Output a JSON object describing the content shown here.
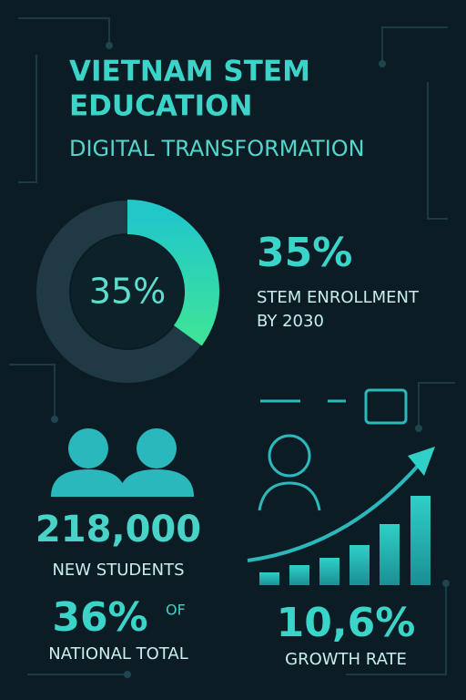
{
  "header": {
    "title_line1": "VIETNAM STEM",
    "title_line2": "EDUCATION",
    "subtitle": "DIGITAL TRANSFORMATION"
  },
  "enrollment": {
    "donut_value": 35,
    "donut_label": "35%",
    "headline": "35%",
    "caption_line1": "STEM ENROLLMENT",
    "caption_line2": "BY 2030"
  },
  "students": {
    "count": "218,000",
    "count_caption": "NEW STUDENTS",
    "share": "36%",
    "share_suffix": "OF",
    "share_caption": "NATIONAL TOTAL"
  },
  "growth": {
    "rate": "10,6%",
    "caption": "GROWTH RATE"
  }
}
